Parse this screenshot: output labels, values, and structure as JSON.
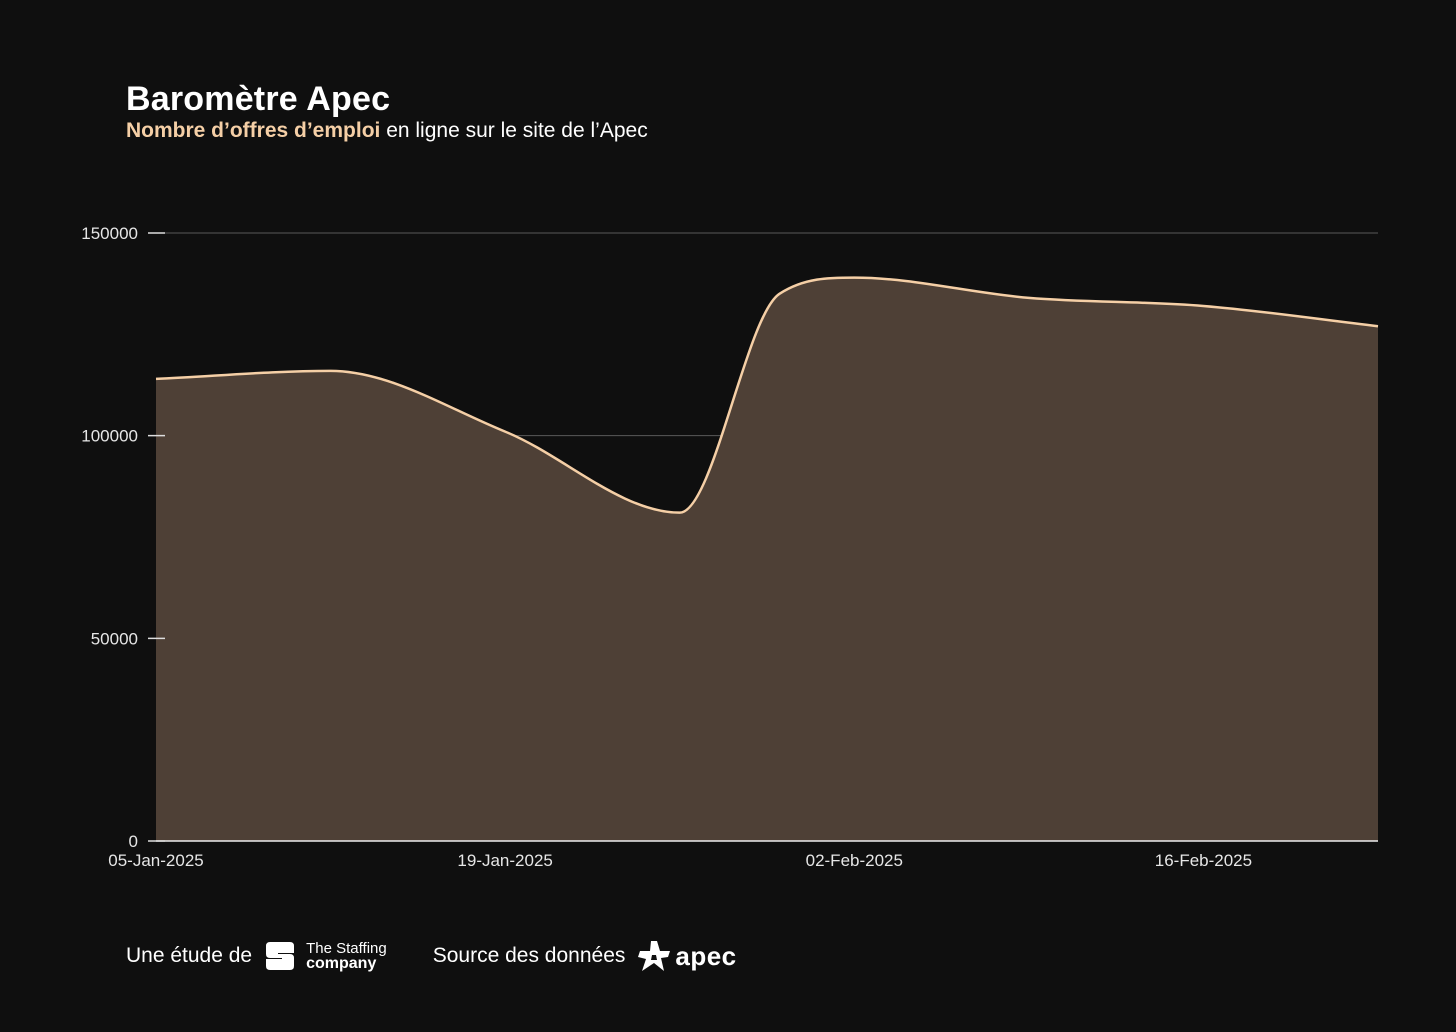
{
  "header": {
    "title": "Baromètre Apec",
    "subtitle_highlight": "Nombre d’offres d’emploi",
    "subtitle_rest": "en ligne sur le site de l’Apec"
  },
  "chart_data": {
    "type": "area",
    "x": [
      "05-Jan-2025",
      "12-Jan-2025",
      "19-Jan-2025",
      "26-Jan-2025",
      "30-Jan-2025",
      "02-Feb-2025",
      "09-Feb-2025",
      "16-Feb-2025",
      "23-Feb-2025"
    ],
    "values": [
      114000,
      116000,
      101000,
      81000,
      135000,
      139000,
      134000,
      132000,
      127000
    ],
    "x_ticks": [
      "05-Jan-2025",
      "19-Jan-2025",
      "02-Feb-2025",
      "16-Feb-2025"
    ],
    "y_ticks": [
      0,
      50000,
      100000,
      150000
    ],
    "ylim": [
      0,
      150000
    ],
    "xlim": [
      "05-Jan-2025",
      "23-Feb-2025"
    ],
    "grid": true,
    "line_color": "#f5cfa6",
    "fill_color": "#4e4036"
  },
  "footer": {
    "study_label": "Une étude de",
    "staffing_line1": "The Staffing",
    "staffing_line2": "company",
    "source_label": "Source des données",
    "apec_text": "apec",
    "staffing_logo_icon": "staffing-s-logo-icon",
    "apec_logo_icon": "apec-star-logo-icon"
  }
}
